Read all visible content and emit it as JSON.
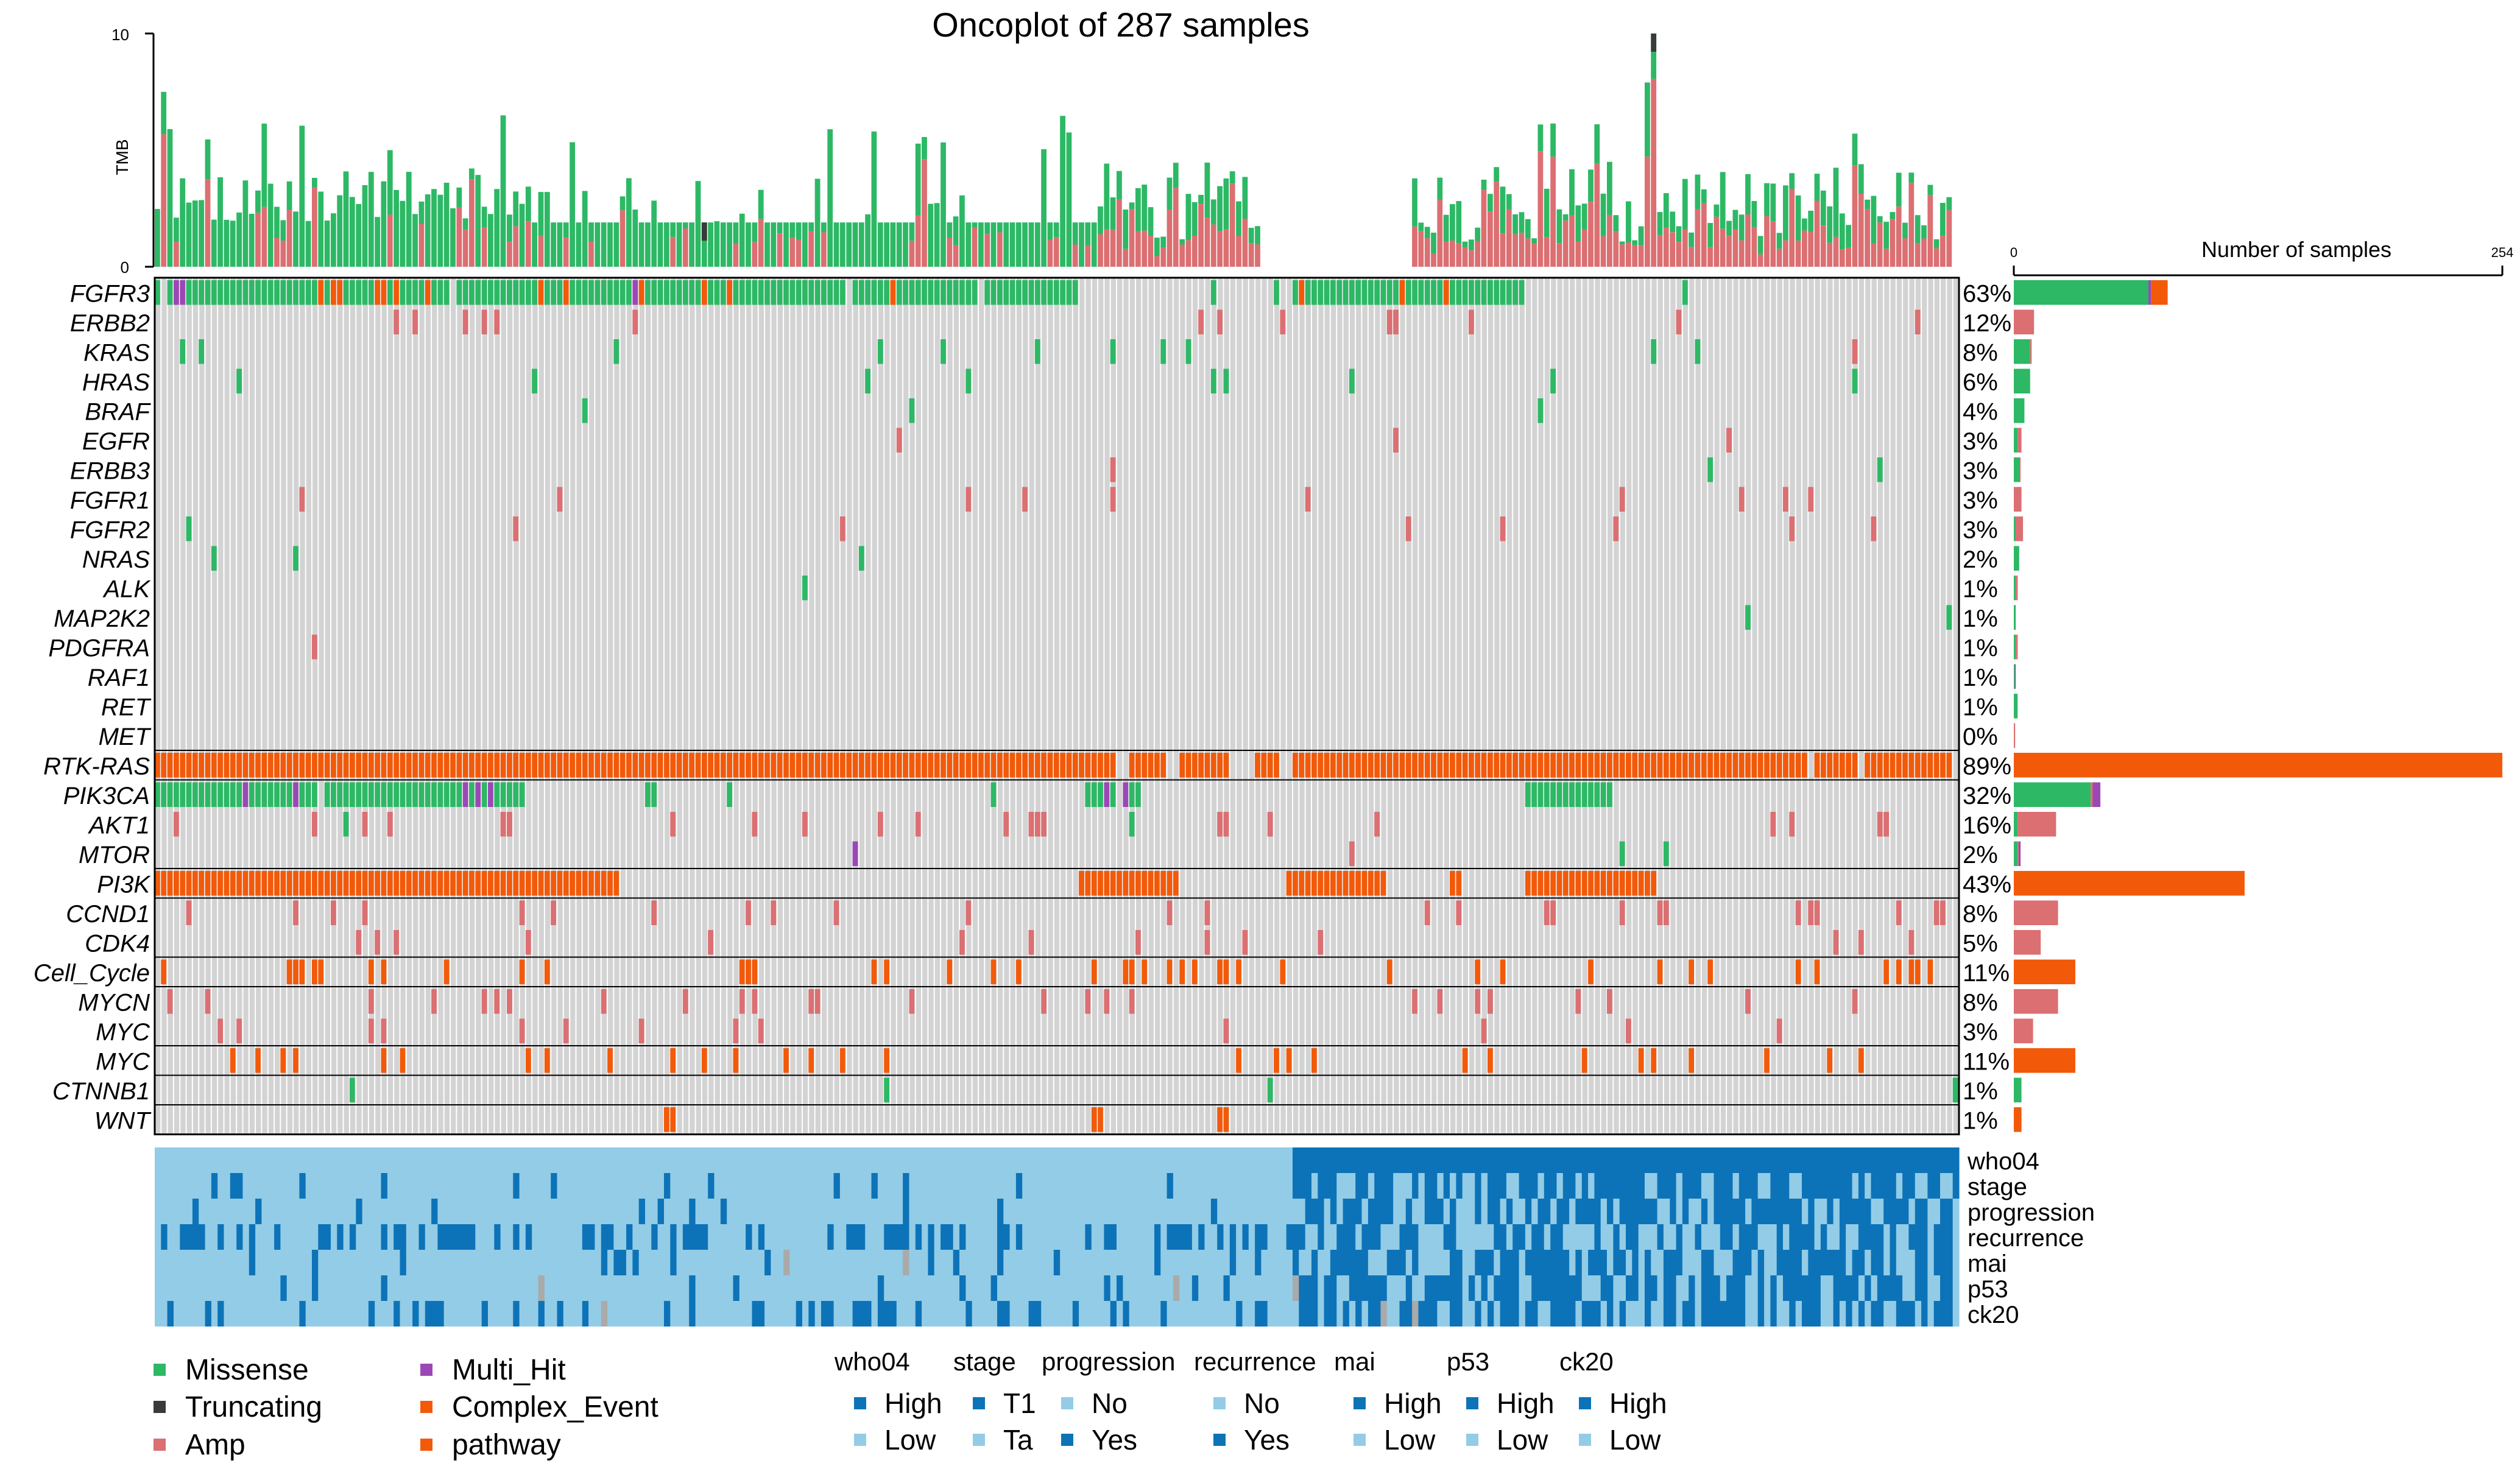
{
  "chart_data": {
    "type": "heatmap",
    "title": "Oncoplot of 287 samples",
    "n_samples": 287,
    "tmb_axis": {
      "label": "TMB",
      "ticks": [
        0,
        10
      ],
      "ylim": [
        0,
        10
      ]
    },
    "count_axis": {
      "label": "Number of samples",
      "ticks": [
        0,
        254
      ],
      "xlim": [
        0,
        254
      ]
    },
    "colors": {
      "Missense": "#2DB865",
      "Truncating": "#3A3A3A",
      "Amp": "#DB6F72",
      "Multi_Hit": "#9B48B6",
      "Complex_Event": "#F25A0A",
      "pathway": "#F25A0A",
      "cell_bg": "#D3D3D3",
      "clin_high": "#0D73B8",
      "clin_low": "#93CCE6",
      "clin_na": "#AAAAAA"
    },
    "genes": [
      {
        "name": "FGFR3",
        "pct": "63%",
        "missense": 70,
        "amp": 0,
        "multi": 1.5,
        "complex": 8.5,
        "pathway": false
      },
      {
        "name": "ERBB2",
        "pct": "12%",
        "missense": 0,
        "amp": 10.5,
        "multi": 0,
        "complex": 0,
        "pathway": false
      },
      {
        "name": "KRAS",
        "pct": "8%",
        "missense": 8.5,
        "amp": 0.8,
        "multi": 0,
        "complex": 0,
        "pathway": false
      },
      {
        "name": "HRAS",
        "pct": "6%",
        "missense": 8.5,
        "amp": 0,
        "multi": 0,
        "complex": 0,
        "pathway": false
      },
      {
        "name": "BRAF",
        "pct": "4%",
        "missense": 5.5,
        "amp": 0,
        "multi": 0,
        "complex": 0,
        "pathway": false
      },
      {
        "name": "EGFR",
        "pct": "3%",
        "missense": 2,
        "amp": 2,
        "multi": 0,
        "complex": 0,
        "pathway": false
      },
      {
        "name": "ERBB3",
        "pct": "3%",
        "missense": 3,
        "amp": 0.5,
        "multi": 0,
        "complex": 0,
        "pathway": false
      },
      {
        "name": "FGFR1",
        "pct": "3%",
        "missense": 0,
        "amp": 4,
        "multi": 0,
        "complex": 0,
        "pathway": false
      },
      {
        "name": "FGFR2",
        "pct": "3%",
        "missense": 0.8,
        "amp": 4,
        "multi": 0,
        "complex": 0,
        "pathway": false
      },
      {
        "name": "NRAS",
        "pct": "2%",
        "missense": 2.8,
        "amp": 0,
        "multi": 0,
        "complex": 0,
        "pathway": false
      },
      {
        "name": "ALK",
        "pct": "1%",
        "missense": 1,
        "amp": 1,
        "multi": 0,
        "complex": 0,
        "pathway": false
      },
      {
        "name": "MAP2K2",
        "pct": "1%",
        "missense": 1,
        "amp": 0,
        "multi": 0,
        "complex": 0,
        "pathway": false
      },
      {
        "name": "PDGFRA",
        "pct": "1%",
        "missense": 1,
        "amp": 1,
        "multi": 0,
        "complex": 0,
        "pathway": false
      },
      {
        "name": "RAF1",
        "pct": "1%",
        "missense": 0.5,
        "amp": 0,
        "multi": 0.5,
        "complex": 0,
        "pathway": false
      },
      {
        "name": "RET",
        "pct": "1%",
        "missense": 2,
        "amp": 0,
        "multi": 0,
        "complex": 0,
        "pathway": false
      },
      {
        "name": "MET",
        "pct": "0%",
        "missense": 0,
        "amp": 0.7,
        "multi": 0,
        "complex": 0,
        "pathway": false
      },
      {
        "name": "RTK-RAS",
        "pct": "89%",
        "missense": 0,
        "amp": 0,
        "multi": 0,
        "complex": 0,
        "pathway": true,
        "total": 254
      },
      {
        "name": "PIK3CA",
        "pct": "32%",
        "missense": 40,
        "amp": 1,
        "multi": 4,
        "complex": 0,
        "pathway": false
      },
      {
        "name": "AKT1",
        "pct": "16%",
        "missense": 2,
        "amp": 20,
        "multi": 0,
        "complex": 0,
        "pathway": false
      },
      {
        "name": "MTOR",
        "pct": "2%",
        "missense": 2,
        "amp": 0.5,
        "multi": 1,
        "complex": 0,
        "pathway": false
      },
      {
        "name": "PI3K",
        "pct": "43%",
        "missense": 0,
        "amp": 0,
        "multi": 0,
        "complex": 0,
        "pathway": true,
        "total": 120
      },
      {
        "name": "CCND1",
        "pct": "8%",
        "missense": 0,
        "amp": 23,
        "multi": 0,
        "complex": 0,
        "pathway": false
      },
      {
        "name": "CDK4",
        "pct": "5%",
        "missense": 0,
        "amp": 14,
        "multi": 0,
        "complex": 0,
        "pathway": false
      },
      {
        "name": "Cell_Cycle",
        "pct": "11%",
        "missense": 0,
        "amp": 0,
        "multi": 0,
        "complex": 0,
        "pathway": true,
        "total": 32
      },
      {
        "name": "MYCN",
        "pct": "8%",
        "missense": 0,
        "amp": 23,
        "multi": 0,
        "complex": 0,
        "pathway": false
      },
      {
        "name": "MYC",
        "pct": "3%",
        "missense": 0,
        "amp": 10,
        "multi": 0,
        "complex": 0,
        "pathway": false
      },
      {
        "name": "MYC",
        "pct": "11%",
        "missense": 0,
        "amp": 0,
        "multi": 0,
        "complex": 0,
        "pathway": true,
        "total": 32
      },
      {
        "name": "CTNNB1",
        "pct": "1%",
        "missense": 4,
        "amp": 0,
        "multi": 0,
        "complex": 0,
        "pathway": false
      },
      {
        "name": "WNT",
        "pct": "1%",
        "missense": 0,
        "amp": 0,
        "multi": 0,
        "complex": 0,
        "pathway": true,
        "total": 4
      }
    ],
    "clinical_tracks": [
      "who04",
      "stage",
      "progression",
      "recurrence",
      "mai",
      "p53",
      "ck20"
    ],
    "legend_variants": [
      "Missense",
      "Truncating",
      "Amp",
      "Multi_Hit",
      "Complex_Event",
      "pathway"
    ],
    "clinical_legend": [
      {
        "name": "who04",
        "levels": [
          "High",
          "Low"
        ]
      },
      {
        "name": "stage",
        "levels": [
          "T1",
          "Ta"
        ]
      },
      {
        "name": "progression",
        "levels": [
          "No",
          "Yes"
        ]
      },
      {
        "name": "recurrence",
        "levels": [
          "No",
          "Yes"
        ]
      },
      {
        "name": "mai",
        "levels": [
          "High",
          "Low"
        ]
      },
      {
        "name": "p53",
        "levels": [
          "High",
          "Low"
        ]
      },
      {
        "name": "ck20",
        "levels": [
          "High",
          "Low"
        ]
      }
    ]
  }
}
